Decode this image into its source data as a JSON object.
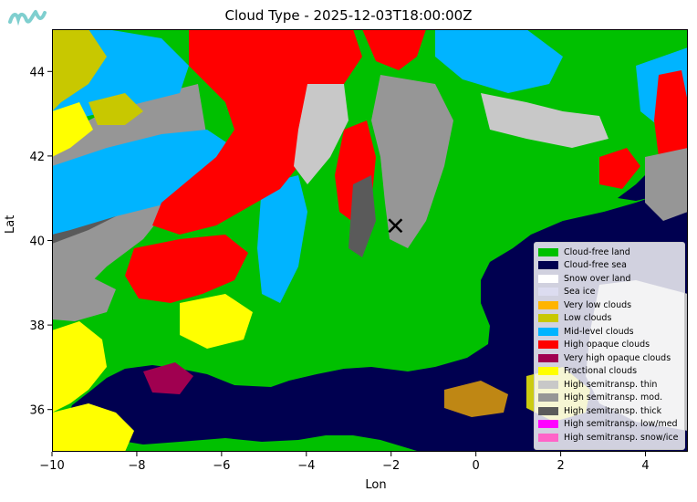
{
  "title": "Cloud Type - 2025-12-03T18:00:00Z",
  "logo_text": "mv",
  "axes": {
    "xlabel": "Lon",
    "ylabel": "Lat",
    "xlim": [
      -10,
      5
    ],
    "ylim": [
      35,
      45
    ],
    "xticks": [
      -10,
      -8,
      -6,
      -4,
      -2,
      0,
      2,
      4
    ],
    "yticks": [
      36,
      38,
      40,
      42,
      44
    ]
  },
  "marker": {
    "symbol": "cross",
    "lon": -1.9,
    "lat": 40.35,
    "color": "#000000"
  },
  "colors": {
    "land": "#00c000",
    "sea": "#000050",
    "high_opaque": "#ff0000",
    "mid_level": "#00b4ff",
    "fractional": "#ffff00",
    "thin": "#c0c0c0",
    "mod": "#969696",
    "thick": "#5a5a5a",
    "low": "#c8c800",
    "very_low": "#ffb400"
  },
  "legend": [
    {
      "label": "Cloud-free land",
      "color": "#00c000"
    },
    {
      "label": "Cloud-free sea",
      "color": "#000050"
    },
    {
      "label": "Snow over land",
      "color": "#ffffff"
    },
    {
      "label": "Sea ice",
      "color": "#dcdcf0"
    },
    {
      "label": "Very low clouds",
      "color": "#ffb400"
    },
    {
      "label": "Low clouds",
      "color": "#c8c800"
    },
    {
      "label": "Mid-level clouds",
      "color": "#00b4ff"
    },
    {
      "label": "High opaque clouds",
      "color": "#ff0000"
    },
    {
      "label": "Very high opaque clouds",
      "color": "#a00050"
    },
    {
      "label": "Fractional clouds",
      "color": "#ffff00"
    },
    {
      "label": "High semitransp. thin",
      "color": "#c8c8c8"
    },
    {
      "label": "High semitransp. mod.",
      "color": "#969696"
    },
    {
      "label": "High semitransp. thick",
      "color": "#5a5a5a"
    },
    {
      "label": "High semitransp. low/med",
      "color": "#ff00ff"
    },
    {
      "label": "High semitransp. snow/ice",
      "color": "#ff64c8"
    }
  ]
}
